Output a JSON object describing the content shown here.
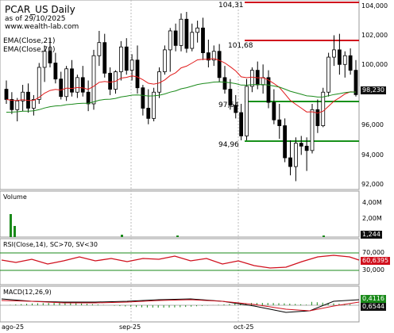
{
  "header": {
    "title": "PCAR_US Daily",
    "asof": "as of 29/10/2025",
    "site": "www.wealth-lab.com",
    "ema21": "EMA(Close,21)",
    "ema70": "EMA(Close,70)"
  },
  "price_axis": [
    "104,000",
    "102,000",
    "100,000",
    "98,000",
    "96,000",
    "94,000",
    "92,000"
  ],
  "last_price": "98,230",
  "level_labels": {
    "top": "104,31",
    "mid": "101,68",
    "mid2": "97,54",
    "low": "94,96"
  },
  "volume": {
    "title": "Volume",
    "axis": [
      "4,00M",
      "2,00M"
    ],
    "last": "1,244"
  },
  "rsi": {
    "title": "RSI(Close,14), SC>70, SV<30",
    "axis": [
      "70,000",
      "30,000"
    ],
    "last": "60,6395"
  },
  "macd": {
    "title": "MACD(12,26,9)",
    "last1": "0,4116",
    "last2": "0,6544"
  },
  "x_axis": [
    "ago-25",
    "sep-25",
    "oct-25"
  ],
  "colors": {
    "up": "#ffffff",
    "down": "#000000",
    "ema21": "#e11b1b",
    "ema70": "#1a8a1a",
    "resist": "#d0101d",
    "support": "#17911a",
    "rsi": "#d0101d",
    "macd_hist": "#1a8a1a"
  },
  "chart_data": {
    "type": "candlestick",
    "ylim": [
      92,
      104.5
    ],
    "candles": [
      [
        98.6,
        99.2,
        97.6,
        97.9
      ],
      [
        97.9,
        98.4,
        96.9,
        97.2
      ],
      [
        97.2,
        98.0,
        96.4,
        97.8
      ],
      [
        97.8,
        98.9,
        97.1,
        98.4
      ],
      [
        98.4,
        99.0,
        97.0,
        97.3
      ],
      [
        97.3,
        98.2,
        96.8,
        97.9
      ],
      [
        97.9,
        100.4,
        97.6,
        100.1
      ],
      [
        100.1,
        101.6,
        99.1,
        101.2
      ],
      [
        101.2,
        102.1,
        100.1,
        100.4
      ],
      [
        100.4,
        101.1,
        99.0,
        99.3
      ],
      [
        99.3,
        99.8,
        97.9,
        98.1
      ],
      [
        98.1,
        100.2,
        97.8,
        100.0
      ],
      [
        100.0,
        100.6,
        98.1,
        98.4
      ],
      [
        98.4,
        99.6,
        98.0,
        99.4
      ],
      [
        99.4,
        100.2,
        98.1,
        98.4
      ],
      [
        98.4,
        99.2,
        97.1,
        97.6
      ],
      [
        97.6,
        101.3,
        97.2,
        100.9
      ],
      [
        100.9,
        102.6,
        100.2,
        101.8
      ],
      [
        101.8,
        102.4,
        99.4,
        99.7
      ],
      [
        99.7,
        100.1,
        98.2,
        98.6
      ],
      [
        98.6,
        99.9,
        98.3,
        99.8
      ],
      [
        99.8,
        101.9,
        99.2,
        101.5
      ],
      [
        101.5,
        102.1,
        99.6,
        99.9
      ],
      [
        99.9,
        101.0,
        99.2,
        100.6
      ],
      [
        100.6,
        101.6,
        98.3,
        98.7
      ],
      [
        98.7,
        98.9,
        96.8,
        97.3
      ],
      [
        97.3,
        98.6,
        96.2,
        96.6
      ],
      [
        96.6,
        98.7,
        96.4,
        98.4
      ],
      [
        98.4,
        100.1,
        98.0,
        99.8
      ],
      [
        99.8,
        101.6,
        99.6,
        101.3
      ],
      [
        101.3,
        102.8,
        99.8,
        102.6
      ],
      [
        102.6,
        103.1,
        101.2,
        101.6
      ],
      [
        101.6,
        103.8,
        101.2,
        103.4
      ],
      [
        103.4,
        103.9,
        101.1,
        101.4
      ],
      [
        101.4,
        103.1,
        101.2,
        102.5
      ],
      [
        102.5,
        103.3,
        101.8,
        102.8
      ],
      [
        102.8,
        103.5,
        100.6,
        101.1
      ],
      [
        101.1,
        102.0,
        100.1,
        100.6
      ],
      [
        100.6,
        101.6,
        100.2,
        101.2
      ],
      [
        101.2,
        101.7,
        99.1,
        99.4
      ],
      [
        99.4,
        100.2,
        98.3,
        98.6
      ],
      [
        98.6,
        99.3,
        97.2,
        97.5
      ],
      [
        97.5,
        98.2,
        96.6,
        97.0
      ],
      [
        97.0,
        97.6,
        95.1,
        95.4
      ],
      [
        95.4,
        99.3,
        95.1,
        98.8
      ],
      [
        98.8,
        100.1,
        98.4,
        99.9
      ],
      [
        99.9,
        100.5,
        98.6,
        98.9
      ],
      [
        98.9,
        100.3,
        98.3,
        99.4
      ],
      [
        99.4,
        99.9,
        97.3,
        97.7
      ],
      [
        97.7,
        98.6,
        96.2,
        96.5
      ],
      [
        96.5,
        97.6,
        95.2,
        96.1
      ],
      [
        96.1,
        96.6,
        93.6,
        93.9
      ],
      [
        93.9,
        95.1,
        92.7,
        93.3
      ],
      [
        93.3,
        95.3,
        92.3,
        94.9
      ],
      [
        94.9,
        95.4,
        94.1,
        94.7
      ],
      [
        94.7,
        95.3,
        93.0,
        94.4
      ],
      [
        94.4,
        97.6,
        94.2,
        97.2
      ],
      [
        97.2,
        97.9,
        95.6,
        96.1
      ],
      [
        96.1,
        98.7,
        96.0,
        98.4
      ],
      [
        98.4,
        101.1,
        98.1,
        100.8
      ],
      [
        100.8,
        102.3,
        100.2,
        101.3
      ],
      [
        101.3,
        102.4,
        99.6,
        100.3
      ],
      [
        100.3,
        101.2,
        99.4,
        100.9
      ],
      [
        100.9,
        101.4,
        99.6,
        99.9
      ],
      [
        99.9,
        100.6,
        98.1,
        98.23
      ]
    ]
  }
}
